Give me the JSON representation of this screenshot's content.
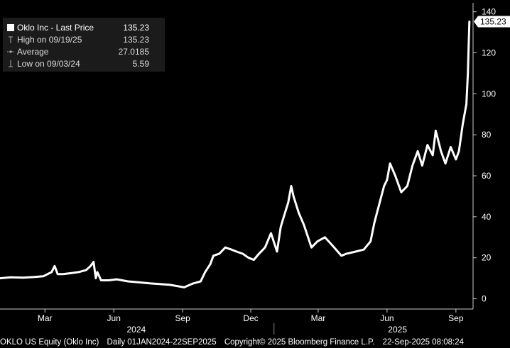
{
  "chart_data": {
    "type": "line",
    "title": "",
    "xlabel": "",
    "ylabel": "",
    "ylim": [
      -5,
      143
    ],
    "xlim": [
      "2024-01-01",
      "2025-09-22"
    ],
    "y_ticks": [
      0,
      20,
      40,
      60,
      80,
      100,
      120,
      140
    ],
    "x_ticks": [
      {
        "label": "Mar",
        "date": "2024-03-01"
      },
      {
        "label": "Jun",
        "date": "2024-06-01"
      },
      {
        "label": "Sep",
        "date": "2024-09-01"
      },
      {
        "label": "Dec",
        "date": "2024-12-01"
      },
      {
        "label": "Mar",
        "date": "2025-03-01"
      },
      {
        "label": "Jun",
        "date": "2025-06-01"
      },
      {
        "label": "Sep",
        "date": "2025-09-01"
      }
    ],
    "year_labels": [
      {
        "label": "2024",
        "date": "2024-07-01"
      },
      {
        "label": "2025",
        "date": "2025-06-15"
      }
    ],
    "year_divider": "2025-01-01",
    "last_price_label": "135.23",
    "line_color": "#ffffff",
    "grid": false,
    "series": [
      {
        "name": "Oklo Inc - Last Price",
        "x": [
          "2024-01-01",
          "2024-01-15",
          "2024-02-01",
          "2024-02-15",
          "2024-02-28",
          "2024-03-10",
          "2024-03-14",
          "2024-03-18",
          "2024-03-25",
          "2024-04-05",
          "2024-04-15",
          "2024-04-25",
          "2024-05-01",
          "2024-05-05",
          "2024-05-08",
          "2024-05-10",
          "2024-05-15",
          "2024-05-25",
          "2024-06-05",
          "2024-06-20",
          "2024-07-05",
          "2024-07-20",
          "2024-08-01",
          "2024-08-15",
          "2024-09-03",
          "2024-09-15",
          "2024-09-25",
          "2024-10-01",
          "2024-10-08",
          "2024-10-12",
          "2024-10-20",
          "2024-10-28",
          "2024-11-05",
          "2024-11-12",
          "2024-11-20",
          "2024-11-28",
          "2024-12-05",
          "2024-12-12",
          "2024-12-20",
          "2024-12-28",
          "2025-01-05",
          "2025-01-10",
          "2025-01-14",
          "2025-01-20",
          "2025-01-24",
          "2025-01-27",
          "2025-02-03",
          "2025-02-10",
          "2025-02-20",
          "2025-02-28",
          "2025-03-10",
          "2025-03-20",
          "2025-04-01",
          "2025-04-08",
          "2025-04-20",
          "2025-05-01",
          "2025-05-10",
          "2025-05-15",
          "2025-05-20",
          "2025-05-28",
          "2025-06-01",
          "2025-06-05",
          "2025-06-12",
          "2025-06-20",
          "2025-06-28",
          "2025-07-05",
          "2025-07-12",
          "2025-07-18",
          "2025-07-25",
          "2025-08-01",
          "2025-08-05",
          "2025-08-12",
          "2025-08-18",
          "2025-08-25",
          "2025-09-01",
          "2025-09-05",
          "2025-09-10",
          "2025-09-15",
          "2025-09-17",
          "2025-09-19"
        ],
        "y": [
          10,
          10.5,
          10.3,
          10.6,
          11,
          13,
          16,
          12,
          12,
          12.5,
          13,
          14,
          16,
          18,
          10,
          13,
          9,
          9,
          9.5,
          8.5,
          8,
          7.5,
          7.2,
          6.8,
          5.59,
          7.5,
          8.5,
          13,
          17,
          21,
          22,
          25,
          24,
          23,
          22,
          20,
          19,
          22,
          25,
          32,
          23,
          35,
          40,
          47,
          55,
          50,
          42,
          36,
          25,
          28,
          30,
          26,
          21,
          22,
          23,
          24,
          28,
          37,
          44,
          55,
          58,
          66,
          60,
          52,
          55,
          65,
          72,
          65,
          75,
          70,
          82,
          72,
          66,
          74,
          68,
          72,
          85,
          95,
          110,
          135.23
        ]
      }
    ],
    "legend": {
      "title_row": {
        "label": "Oklo Inc - Last Price",
        "value": "135.23"
      },
      "high_row": {
        "label": "High on 09/19/25",
        "value": "135.23"
      },
      "average_row": {
        "label": "Average",
        "value": "27.0185"
      },
      "low_row": {
        "label": "Low on 09/03/24",
        "value": "5.59"
      }
    }
  },
  "footer": {
    "ticker": "OKLO US Equity (Oklo Inc)",
    "range": "Daily 01JAN2024-22SEP2025",
    "copyright": "Copyright© 2025 Bloomberg Finance L.P.",
    "timestamp": "22-Sep-2025 08:08:24"
  }
}
